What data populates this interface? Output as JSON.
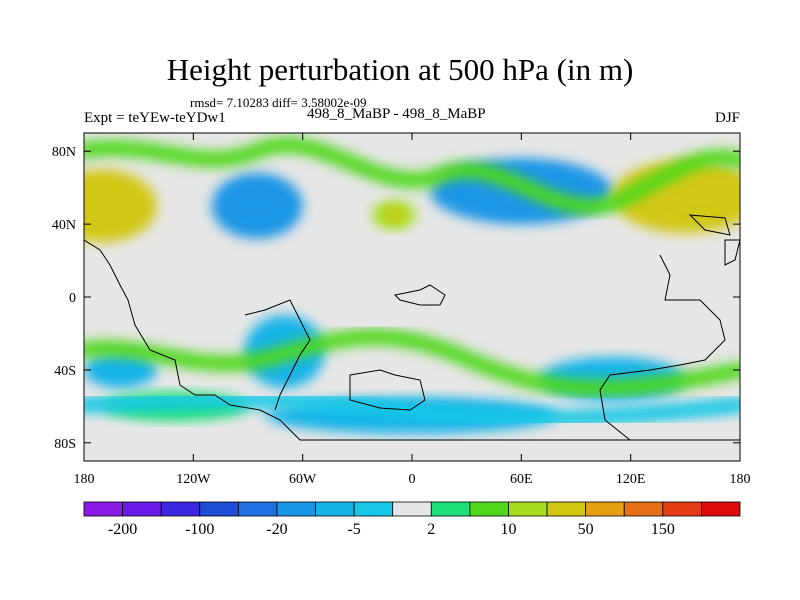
{
  "chart_data": {
    "type": "heatmap",
    "title": "Height perturbation at 500 hPa (in m)",
    "stats_line": "rmsd= 7.10283 diff= 3.58002e-09",
    "left_label": "Expt = teYEw-teYDw1",
    "center_label": "498_8_MaBP - 498_8_MaBP",
    "right_label": "DJF",
    "x_axis": {
      "range": [
        -180,
        180
      ],
      "ticks": [
        {
          "value": -180,
          "label": "180"
        },
        {
          "value": -120,
          "label": "120W"
        },
        {
          "value": -60,
          "label": "60W"
        },
        {
          "value": 0,
          "label": "0"
        },
        {
          "value": 60,
          "label": "60E"
        },
        {
          "value": 120,
          "label": "120E"
        },
        {
          "value": 180,
          "label": "180"
        }
      ]
    },
    "y_axis": {
      "range": [
        -90,
        90
      ],
      "ticks": [
        {
          "value": 80,
          "label": "80N"
        },
        {
          "value": 40,
          "label": "40N"
        },
        {
          "value": 0,
          "label": "0"
        },
        {
          "value": -40,
          "label": "40S"
        },
        {
          "value": -80,
          "label": "80S"
        }
      ]
    },
    "colorbar": {
      "colors": [
        "#8c1ae6",
        "#6a1ae6",
        "#3c28e0",
        "#1e4ed8",
        "#1f6fe0",
        "#1a96e6",
        "#15b4e8",
        "#17c8e6",
        "#e6e6e6",
        "#1ee07a",
        "#50d81a",
        "#a8dc1e",
        "#d2c814",
        "#e6a014",
        "#e66e14",
        "#e63c14",
        "#dc0a0a"
      ],
      "labels": [
        {
          "boundary": 1,
          "text": "-200"
        },
        {
          "boundary": 3,
          "text": "-100"
        },
        {
          "boundary": 5,
          "text": "-20"
        },
        {
          "boundary": 7,
          "text": "-5"
        },
        {
          "boundary": 9,
          "text": "2"
        },
        {
          "boundary": 11,
          "text": "10"
        },
        {
          "boundary": 13,
          "text": "50"
        },
        {
          "boundary": 15,
          "text": "150"
        }
      ]
    },
    "field_features": [
      {
        "name": "north-pacific-positive",
        "lon": -170,
        "lat": 50,
        "rx": 30,
        "ry": 20,
        "value": 25
      },
      {
        "name": "north-pacific-positive-core",
        "lon": -175,
        "lat": 50,
        "rx": 10,
        "ry": 12,
        "value": 35
      },
      {
        "name": "north-america-negative",
        "lon": -85,
        "lat": 50,
        "rx": 25,
        "ry": 18,
        "value": -12
      },
      {
        "name": "north-america-negative-core",
        "lon": -85,
        "lat": 52,
        "rx": 15,
        "ry": 10,
        "value": -18
      },
      {
        "name": "north-atlantic-positive",
        "lon": -10,
        "lat": 45,
        "rx": 12,
        "ry": 8,
        "value": 15
      },
      {
        "name": "north-atlantic-positive-core",
        "lon": -10,
        "lat": 45,
        "rx": 5,
        "ry": 4,
        "value": 20
      },
      {
        "name": "eurasia-negative",
        "lon": 60,
        "lat": 58,
        "rx": 50,
        "ry": 18,
        "value": -12
      },
      {
        "name": "eurasia-negative-core",
        "lon": 60,
        "lat": 58,
        "rx": 30,
        "ry": 12,
        "value": -20
      },
      {
        "name": "east-asia-positive",
        "lon": 150,
        "lat": 55,
        "rx": 40,
        "ry": 20,
        "value": 25
      },
      {
        "name": "east-asia-positive-core",
        "lon": 160,
        "lat": 58,
        "rx": 25,
        "ry": 10,
        "value": 40
      },
      {
        "name": "south-america-negative",
        "lon": -70,
        "lat": -30,
        "rx": 22,
        "ry": 20,
        "value": -7
      },
      {
        "name": "southern-ocean-negative",
        "lon": 0,
        "lat": -65,
        "rx": 80,
        "ry": 10,
        "value": -8
      },
      {
        "name": "south-indian-negative",
        "lon": 110,
        "lat": -45,
        "rx": 40,
        "ry": 12,
        "value": -7
      },
      {
        "name": "south-pacific-negative",
        "lon": -160,
        "lat": -40,
        "rx": 20,
        "ry": 10,
        "value": -6
      },
      {
        "name": "antarctic-positive",
        "lon": -130,
        "lat": -60,
        "rx": 40,
        "ry": 8,
        "value": 4
      }
    ]
  }
}
